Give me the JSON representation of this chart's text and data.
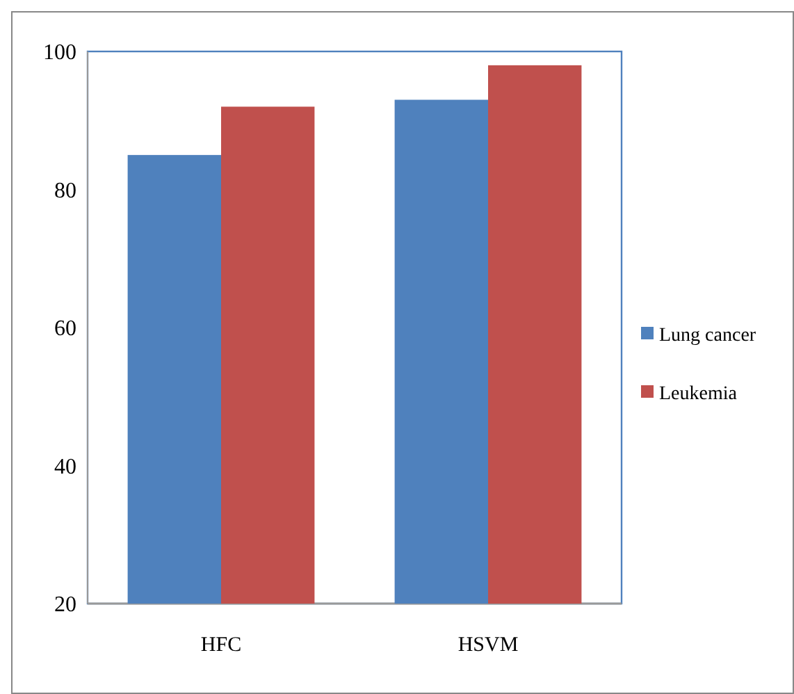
{
  "chart_data": {
    "type": "bar",
    "categories": [
      "HFC",
      "HSVM"
    ],
    "series": [
      {
        "name": "Lung cancer",
        "color": "#4f81bd",
        "values": [
          85,
          93
        ]
      },
      {
        "name": "Leukemia",
        "color": "#c0504d",
        "values": [
          92,
          98
        ]
      }
    ],
    "ylim": [
      20,
      100
    ],
    "yticks": [
      20,
      40,
      60,
      80,
      100
    ],
    "grid": false,
    "legend": "right"
  }
}
